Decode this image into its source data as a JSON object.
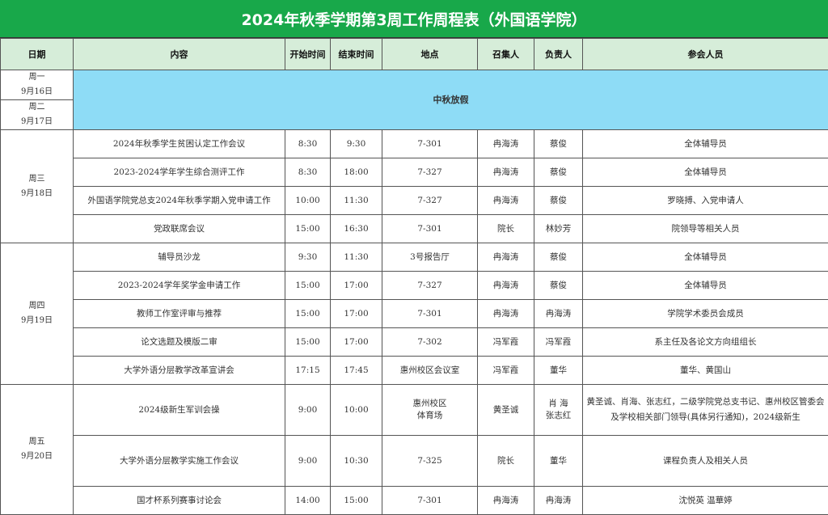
{
  "title": "2024年秋季学期第3周工作周程表（外国语学院）",
  "headers": [
    "日期",
    "内容",
    "开始时间",
    "结束时间",
    "地点",
    "召集人",
    "负责人",
    "参会人员"
  ],
  "holiday": {
    "days": [
      {
        "weekday": "周一",
        "date": "9月16日"
      },
      {
        "weekday": "周二",
        "date": "9月17日"
      }
    ],
    "label": "中秋放假",
    "color": "#8edcf6"
  },
  "days": [
    {
      "weekday": "周三",
      "date": "9月18日",
      "items": [
        {
          "content": "2024年秋季学生贫困认定工作会议",
          "start": "8:30",
          "end": "9:30",
          "place": "7-301",
          "convener": "冉海涛",
          "owner": "蔡俊",
          "attendees": "全体辅导员"
        },
        {
          "content": "2023-2024学年学生综合测评工作",
          "start": "8:30",
          "end": "18:00",
          "place": "7-327",
          "convener": "冉海涛",
          "owner": "蔡俊",
          "attendees": "全体辅导员"
        },
        {
          "content": "外国语学院党总支2024年秋季学期入党申请工作",
          "start": "10:00",
          "end": "11:30",
          "place": "7-327",
          "convener": "冉海涛",
          "owner": "蔡俊",
          "attendees": "罗晓搏、入党申请人"
        },
        {
          "content": "党政联席会议",
          "start": "15:00",
          "end": "16:30",
          "place": "7-301",
          "convener": "院长",
          "owner": "林妙芳",
          "attendees": "院领导等相关人员"
        }
      ]
    },
    {
      "weekday": "周四",
      "date": "9月19日",
      "items": [
        {
          "content": "辅导员沙龙",
          "start": "9:30",
          "end": "11:30",
          "place": "3号报告厅",
          "convener": "冉海涛",
          "owner": "蔡俊",
          "attendees": "全体辅导员"
        },
        {
          "content": "2023-2024学年奖学金申请工作",
          "start": "15:00",
          "end": "17:00",
          "place": "7-327",
          "convener": "冉海涛",
          "owner": "蔡俊",
          "attendees": "全体辅导员"
        },
        {
          "content": "教师工作室评审与推荐",
          "start": "15:00",
          "end": "17:00",
          "place": "7-301",
          "convener": "冉海涛",
          "owner": "冉海涛",
          "attendees": "学院学术委员会成员"
        },
        {
          "content": "论文选题及模版二审",
          "start": "15:00",
          "end": "17:00",
          "place": "7-302",
          "convener": "冯军霞",
          "owner": "冯军霞",
          "attendees": "系主任及各论文方向组组长"
        },
        {
          "content": "大学外语分层教学改革宣讲会",
          "start": "17:15",
          "end": "17:45",
          "place": "惠州校区会议室",
          "convener": "冯军霞",
          "owner": "董华",
          "attendees": "董华、黄国山"
        }
      ]
    },
    {
      "weekday": "周五",
      "date": "9月20日",
      "items": [
        {
          "content": "2024级新生军训会操",
          "start": "9:00",
          "end": "10:00",
          "place": "惠州校区\n体育场",
          "convener": "黄圣诚",
          "owner": "肖  海\n张志红",
          "attendees": "黄圣诚、肖海、张志红，二级学院党总支书记、惠州校区管委会及学校相关部门领导(具体另行通知)，2024级新生",
          "tall": true
        },
        {
          "content": "大学外语分层教学实施工作会议",
          "start": "9:00",
          "end": "10:30",
          "place": "7-325",
          "convener": "院长",
          "owner": "董华",
          "attendees": "课程负责人及相关人员",
          "tall": true
        },
        {
          "content": "国才杯系列赛事讨论会",
          "start": "14:00",
          "end": "15:00",
          "place": "7-301",
          "convener": "冉海涛",
          "owner": "冉海涛",
          "attendees": "沈悦英 温華婷"
        }
      ]
    }
  ]
}
